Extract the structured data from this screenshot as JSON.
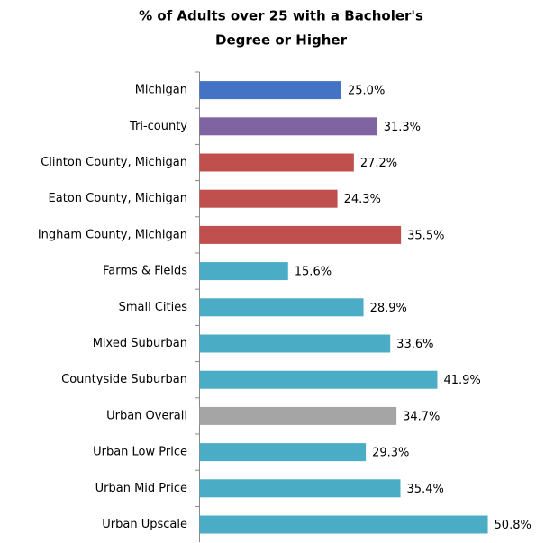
{
  "chart_data": {
    "type": "barh",
    "title": [
      "% of Adults  over 25 with a Bacholer's",
      "Degree or Higher"
    ],
    "categories": [
      "Michigan",
      "Tri-county",
      "Clinton County, Michigan",
      "Eaton County, Michigan",
      "Ingham County, Michigan",
      "Farms & Fields",
      "Small Cities",
      "Mixed Suburban",
      "Countyside Suburban",
      "Urban Overall",
      "Urban Low Price",
      "Urban Mid Price",
      "Urban Upscale"
    ],
    "values": [
      25.0,
      31.3,
      27.2,
      24.3,
      35.5,
      15.6,
      28.9,
      33.6,
      41.9,
      34.7,
      29.3,
      35.4,
      50.8
    ],
    "value_labels": [
      "25.0%",
      "31.3%",
      "27.2%",
      "24.3%",
      "35.5%",
      "15.6%",
      "28.9%",
      "33.6%",
      "41.9%",
      "34.7%",
      "29.3%",
      "35.4%",
      "50.8%"
    ],
    "colors": [
      "#4472c4",
      "#8064a2",
      "#c0504d",
      "#c0504d",
      "#c0504d",
      "#4bacc6",
      "#4bacc6",
      "#4bacc6",
      "#4bacc6",
      "#a5a5a5",
      "#4bacc6",
      "#4bacc6",
      "#4bacc6"
    ]
  }
}
